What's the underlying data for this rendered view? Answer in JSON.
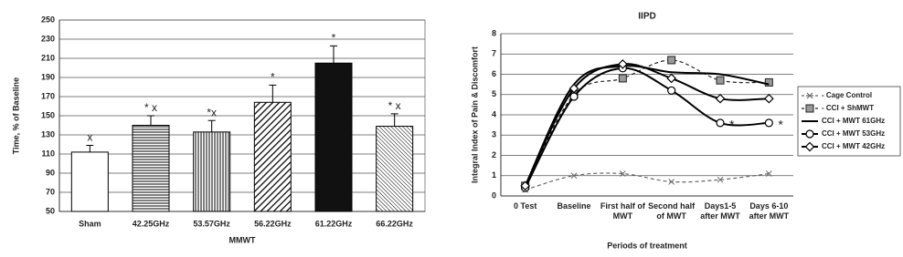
{
  "chart_data": [
    {
      "type": "bar",
      "y_label": "Time, % of Baseline",
      "x_label": "MMWT",
      "categories": [
        "Sham",
        "42.25GHz",
        "53.57GHz",
        "56.22GHz",
        "61.22GHz",
        "66.22GHz"
      ],
      "values": [
        112,
        140,
        133,
        164,
        205,
        139
      ],
      "errors": [
        7,
        10,
        12,
        18,
        18,
        13
      ],
      "annotations": [
        "x",
        "* x",
        "*x",
        "*",
        "*",
        "* x"
      ],
      "fills": [
        "white",
        "hlines",
        "vlines",
        "diag",
        "black",
        "diag-fine"
      ],
      "ylim": [
        50,
        250
      ],
      "yticks": [
        50,
        70,
        90,
        110,
        130,
        150,
        170,
        190,
        210,
        230,
        250
      ],
      "grid": true
    },
    {
      "type": "line",
      "title": "IIPD",
      "y_label": "Integral Index of Pain & Discomfort",
      "x_label": "Periods of treatment",
      "categories": [
        "0 Test",
        "Baseline",
        "First half of MWT",
        "Second half of MWT",
        "Days1-5 after MWT",
        "Days 6-10 after MWT"
      ],
      "series": [
        {
          "name": "- Cage Control",
          "color": "#666666",
          "dash": true,
          "marker": "x",
          "values": [
            0.3,
            1.0,
            1.1,
            0.7,
            0.8,
            1.1
          ]
        },
        {
          "name": "- CCI + ShMWT",
          "color": "#222222",
          "dash": true,
          "marker": "square",
          "values": [
            0.5,
            5.0,
            5.8,
            6.7,
            5.7,
            5.6
          ]
        },
        {
          "name": "CCI + MWT 61GHz",
          "color": "#000000",
          "dash": false,
          "marker": "none",
          "values": [
            0.5,
            5.5,
            6.4,
            6.1,
            6.0,
            5.5
          ]
        },
        {
          "name": "CCI + MWT 53GHz",
          "color": "#000000",
          "dash": false,
          "marker": "circle",
          "values": [
            0.4,
            4.9,
            6.3,
            5.2,
            3.6,
            3.6
          ],
          "point_labels": [
            null,
            null,
            null,
            null,
            "*",
            "*"
          ]
        },
        {
          "name": "CCI + MWT 42GHz",
          "color": "#000000",
          "dash": false,
          "marker": "diamond",
          "values": [
            0.5,
            5.3,
            6.5,
            5.8,
            4.8,
            4.8
          ]
        }
      ],
      "ylim": [
        0,
        8
      ],
      "yticks": [
        0,
        1,
        2,
        3,
        4,
        5,
        6,
        7,
        8
      ],
      "grid": true,
      "legend": "right"
    }
  ]
}
